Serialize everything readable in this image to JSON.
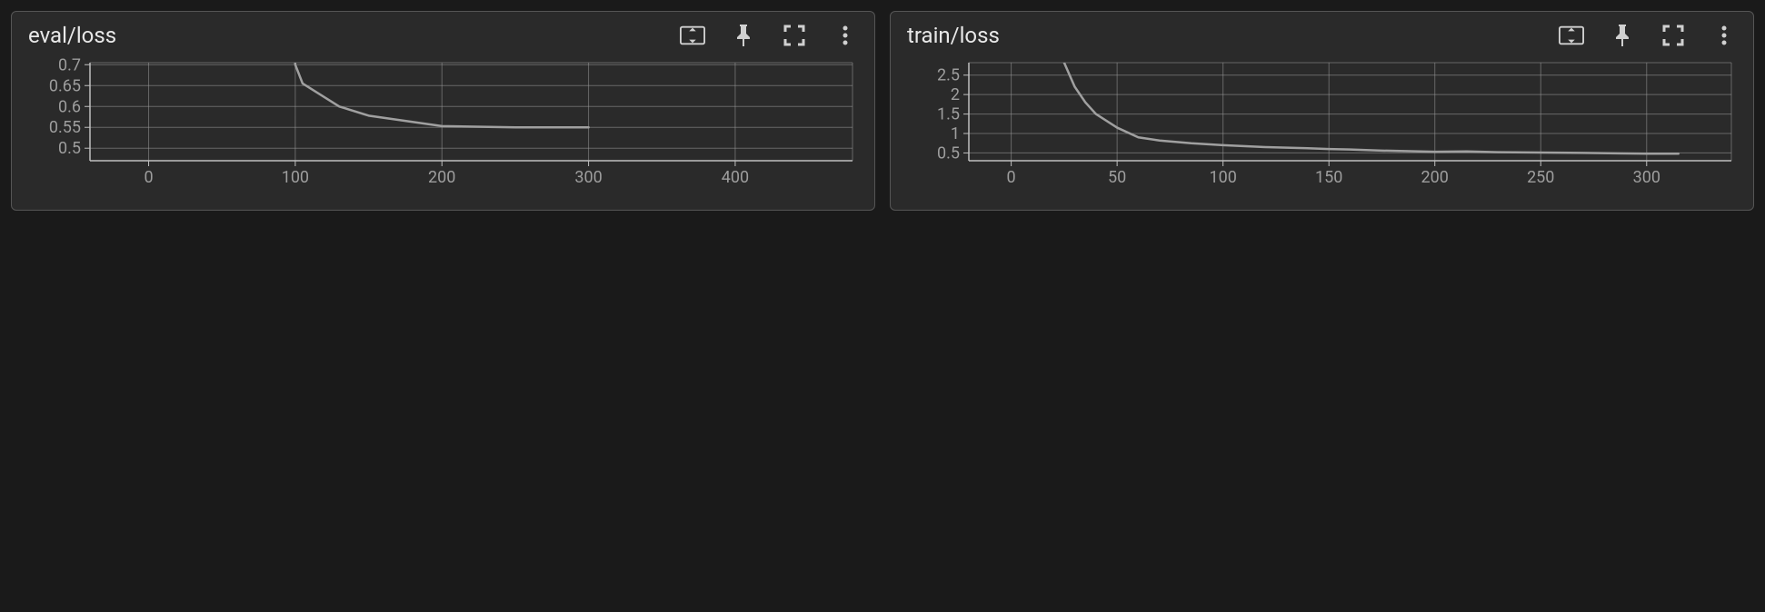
{
  "background_color": "#1a1a1a",
  "panel_background": "#2a2a2a",
  "panel_border": "#555555",
  "grid_color": "#9a9a9a",
  "axis_color": "#bfbfbf",
  "tick_font_color": "#9e9e9e",
  "tick_font_size": 18,
  "line_color": "#a0a0a0",
  "line_width": 2.5,
  "title_color": "#e8e8e8",
  "title_font_size": 24,
  "icon_color": "#d0d0d0",
  "panels": [
    {
      "id": "eval-loss",
      "title": "eval/loss",
      "type": "line",
      "xlim": [
        -40,
        480
      ],
      "ylim": [
        0.47,
        0.705
      ],
      "xticks": [
        0,
        100,
        200,
        300,
        400
      ],
      "yticks": [
        0.5,
        0.55,
        0.6,
        0.65,
        0.7
      ],
      "ytick_labels": [
        "0.5",
        "0.55",
        "0.6",
        "0.65",
        "0.7"
      ],
      "xtick_labels": [
        "0",
        "100",
        "200",
        "300",
        "400"
      ],
      "data": [
        [
          95,
          0.95
        ],
        [
          100,
          0.7
        ],
        [
          105,
          0.655
        ],
        [
          130,
          0.6
        ],
        [
          150,
          0.578
        ],
        [
          200,
          0.553
        ],
        [
          250,
          0.55
        ],
        [
          300,
          0.55
        ]
      ]
    },
    {
      "id": "train-loss",
      "title": "train/loss",
      "type": "line",
      "xlim": [
        -20,
        340
      ],
      "ylim": [
        0.3,
        2.82
      ],
      "xticks": [
        0,
        50,
        100,
        150,
        200,
        250,
        300
      ],
      "yticks": [
        0.5,
        1,
        1.5,
        2,
        2.5
      ],
      "ytick_labels": [
        "0.5",
        "1",
        "1.5",
        "2",
        "2.5"
      ],
      "xtick_labels": [
        "0",
        "50",
        "100",
        "150",
        "200",
        "250",
        "300"
      ],
      "data": [
        [
          20,
          4.2
        ],
        [
          25,
          2.82
        ],
        [
          30,
          2.2
        ],
        [
          35,
          1.8
        ],
        [
          40,
          1.5
        ],
        [
          50,
          1.15
        ],
        [
          60,
          0.9
        ],
        [
          70,
          0.82
        ],
        [
          85,
          0.75
        ],
        [
          100,
          0.7
        ],
        [
          120,
          0.65
        ],
        [
          140,
          0.62
        ],
        [
          150,
          0.6
        ],
        [
          160,
          0.59
        ],
        [
          175,
          0.56
        ],
        [
          200,
          0.53
        ],
        [
          215,
          0.54
        ],
        [
          230,
          0.52
        ],
        [
          250,
          0.51
        ],
        [
          270,
          0.5
        ],
        [
          300,
          0.48
        ],
        [
          315,
          0.48
        ]
      ]
    }
  ]
}
